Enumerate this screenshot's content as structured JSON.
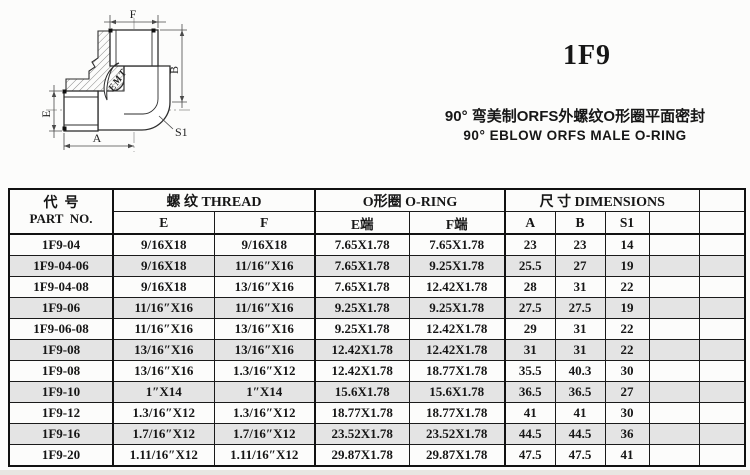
{
  "product": {
    "code": "1F9",
    "title_cn": "90° 弯美制ORFS外螺纹O形圈平面密封",
    "title_en": "90° EBLOW ORFS MALE O-RING"
  },
  "drawing": {
    "brand": "EMT",
    "dim_labels": {
      "f": "F",
      "b": "B",
      "e": "E",
      "a": "A",
      "s1": "S1"
    }
  },
  "table": {
    "header": {
      "part_cn": "代  号",
      "part_en": "PART  NO.",
      "thread_group": "螺  纹   THREAD",
      "oring_group": "O形圈 O-RING",
      "dims_group": "尺  寸    DIMENSIONS",
      "sub": {
        "e": "E",
        "f": "F",
        "e_end": "E端",
        "f_end": "F端",
        "a": "A",
        "b": "B",
        "s1": "S1"
      }
    },
    "rows": [
      [
        "1F9-04",
        "9/16X18",
        "9/16X18",
        "7.65X1.78",
        "7.65X1.78",
        "23",
        "23",
        "14"
      ],
      [
        "1F9-04-06",
        "9/16X18",
        "11/16″X16",
        "7.65X1.78",
        "9.25X1.78",
        "25.5",
        "27",
        "19"
      ],
      [
        "1F9-04-08",
        "9/16X18",
        "13/16″X16",
        "7.65X1.78",
        "12.42X1.78",
        "28",
        "31",
        "22"
      ],
      [
        "1F9-06",
        "11/16″X16",
        "11/16″X16",
        "9.25X1.78",
        "9.25X1.78",
        "27.5",
        "27.5",
        "19"
      ],
      [
        "1F9-06-08",
        "11/16″X16",
        "13/16″X16",
        "9.25X1.78",
        "12.42X1.78",
        "29",
        "31",
        "22"
      ],
      [
        "1F9-08",
        "13/16″X16",
        "13/16″X16",
        "12.42X1.78",
        "12.42X1.78",
        "31",
        "31",
        "22"
      ],
      [
        "1F9-08",
        "13/16″X16",
        "1.3/16″X12",
        "12.42X1.78",
        "18.77X1.78",
        "35.5",
        "40.3",
        "30"
      ],
      [
        "1F9-10",
        "1″X14",
        "1″X14",
        "15.6X1.78",
        "15.6X1.78",
        "36.5",
        "36.5",
        "27"
      ],
      [
        "1F9-12",
        "1.3/16″X12",
        "1.3/16″X12",
        "18.77X1.78",
        "18.77X1.78",
        "41",
        "41",
        "30"
      ],
      [
        "1F9-16",
        "1.7/16″X12",
        "1.7/16″X12",
        "23.52X1.78",
        "23.52X1.78",
        "44.5",
        "44.5",
        "36"
      ],
      [
        "1F9-20",
        "1.11/16″X12",
        "1.11/16″X12",
        "29.87X1.78",
        "29.87X1.78",
        "47.5",
        "47.5",
        "41"
      ]
    ]
  }
}
